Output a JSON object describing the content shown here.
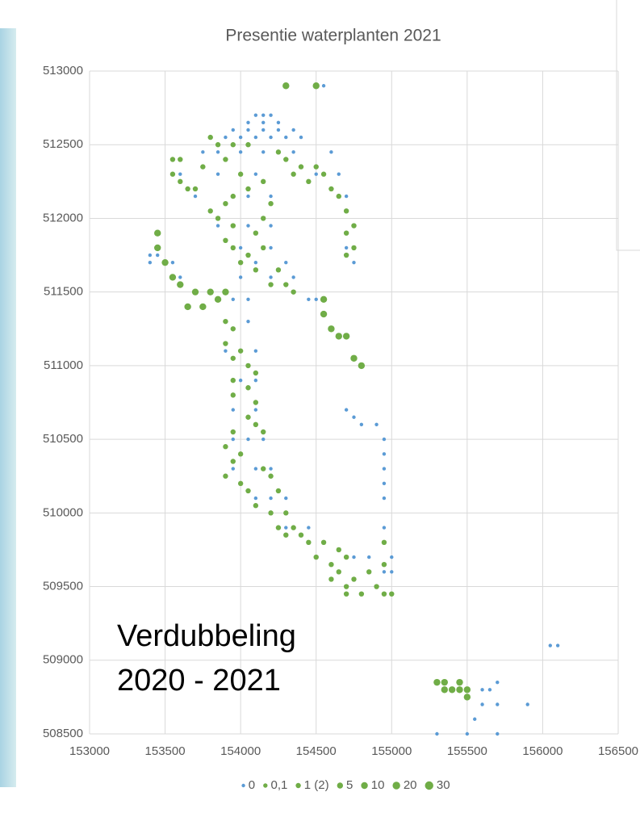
{
  "chart_data": {
    "type": "scatter",
    "title": "Presentie waterplanten 2021",
    "annotations": [
      "Verdubbeling",
      "2020 - 2021"
    ],
    "xlim": [
      153000,
      156500
    ],
    "xticks": [
      153000,
      153500,
      154000,
      154500,
      155000,
      155500,
      156000,
      156500
    ],
    "ylim": [
      508500,
      513000
    ],
    "yticks": [
      508500,
      509000,
      509500,
      510000,
      510500,
      511000,
      511500,
      512000,
      512500,
      513000
    ],
    "grid": true,
    "legend": "bottom",
    "series": [
      {
        "name": "0",
        "color": "#5b9bd5",
        "x": [
          154100,
          154150,
          154200,
          154050,
          154150,
          154250,
          153950,
          154050,
          154150,
          154250,
          154350,
          153900,
          154000,
          154100,
          154200,
          154300,
          154400,
          153750,
          153850,
          154000,
          154150,
          154350,
          154600,
          153600,
          153850,
          154100,
          154500,
          154650,
          153700,
          154050,
          154200,
          154700,
          153850,
          154050,
          154200,
          154000,
          154200,
          154700,
          153400,
          153500,
          153550,
          154100,
          154300,
          154750,
          153600,
          154000,
          154200,
          154350,
          153950,
          154050,
          154450,
          154500,
          153900,
          154050,
          153900,
          154000,
          154100,
          154000,
          154100,
          153950,
          154100,
          154700,
          153950,
          154050,
          154150,
          154950,
          153950,
          154100,
          154200,
          154950,
          154100,
          154200,
          154300,
          154950,
          154300,
          154450,
          154950,
          154750,
          154850,
          155000,
          154950,
          155000,
          154550,
          153400,
          153450,
          154750,
          154800,
          154900,
          154950,
          154950,
          155300,
          155500,
          155700,
          155550,
          155600,
          155700,
          155600,
          155650,
          155700,
          155900,
          156050,
          156100
        ],
        "y": [
          512700,
          512700,
          512700,
          512650,
          512650,
          512650,
          512600,
          512600,
          512600,
          512600,
          512600,
          512550,
          512550,
          512550,
          512550,
          512550,
          512550,
          512450,
          512450,
          512450,
          512450,
          512450,
          512450,
          512300,
          512300,
          512300,
          512300,
          512300,
          512150,
          512150,
          512150,
          512150,
          511950,
          511950,
          511950,
          511800,
          511800,
          511800,
          511700,
          511700,
          511700,
          511700,
          511700,
          511700,
          511600,
          511600,
          511600,
          511600,
          511450,
          511450,
          511450,
          511450,
          511300,
          511300,
          511100,
          511100,
          511100,
          510900,
          510900,
          510700,
          510700,
          510700,
          510500,
          510500,
          510500,
          510500,
          510300,
          510300,
          510300,
          510300,
          510100,
          510100,
          510100,
          510100,
          509900,
          509900,
          509900,
          509700,
          509700,
          509700,
          509600,
          509600,
          512900,
          511750,
          511750,
          510650,
          510600,
          510600,
          510400,
          510200,
          508500,
          508500,
          508500,
          508600,
          508700,
          508700,
          508800,
          508800,
          508850,
          508700,
          509100,
          509100
        ]
      },
      {
        "name": "0,1",
        "color": "#70ad47",
        "x": [],
        "y": []
      },
      {
        "name": "1 (2)",
        "color": "#70ad47",
        "x": [
          153550,
          153600,
          153550,
          153600,
          153650,
          153700,
          153750,
          153800,
          153850,
          153800,
          153850,
          153900,
          153950,
          153900,
          153950,
          154000,
          154050,
          154100,
          154150,
          154100,
          154150,
          154200,
          154250,
          154300,
          154350,
          154250,
          154300,
          154350,
          154400,
          154450,
          154500,
          154550,
          154600,
          154650,
          154700,
          154750,
          154700,
          154750,
          154700,
          153950,
          154050,
          153900,
          154000,
          154050,
          154150,
          154200,
          153950,
          153900,
          153950,
          153900,
          154000,
          153950,
          154050,
          154100,
          153950,
          154050,
          153950,
          154100,
          154050,
          154100,
          154150,
          153950,
          153900,
          153950,
          154000,
          153900,
          154000,
          154050,
          154150,
          154200,
          154250,
          154100,
          154200,
          154300,
          154350,
          154250,
          154300,
          154400,
          154450,
          154550,
          154500,
          154600,
          154650,
          154700,
          154600,
          154650,
          154700,
          154750,
          154700,
          154800,
          154850,
          154900,
          154950,
          155000,
          154950,
          154950
        ],
        "y": [
          512400,
          512400,
          512300,
          512250,
          512200,
          512200,
          512350,
          512550,
          512500,
          512050,
          512000,
          512100,
          511950,
          511850,
          511800,
          511700,
          511750,
          511650,
          511800,
          511900,
          512000,
          511550,
          511650,
          511550,
          511500,
          512450,
          512400,
          512300,
          512350,
          512250,
          512350,
          512300,
          512200,
          512150,
          512050,
          511950,
          511900,
          511800,
          511750,
          512500,
          512500,
          512400,
          512300,
          512200,
          512250,
          512100,
          512150,
          511300,
          511250,
          511150,
          511100,
          511050,
          511000,
          510950,
          510900,
          510850,
          510800,
          510750,
          510650,
          510600,
          510550,
          510550,
          510450,
          510350,
          510400,
          510250,
          510200,
          510150,
          510300,
          510250,
          510150,
          510050,
          510000,
          510000,
          509900,
          509900,
          509850,
          509850,
          509800,
          509800,
          509700,
          509650,
          509750,
          509700,
          509550,
          509600,
          509500,
          509550,
          509450,
          509450,
          509600,
          509500,
          509450,
          509450,
          509650,
          509800
        ]
      },
      {
        "name": "5",
        "color": "#70ad47",
        "x": [],
        "y": []
      },
      {
        "name": "10",
        "color": "#70ad47",
        "x": [
          154300,
          154500,
          153450,
          153450,
          153500,
          153550,
          153600,
          153700,
          153650,
          153750,
          153800,
          153850,
          153900,
          154550,
          154550,
          154600,
          154650,
          154700,
          154750,
          154800,
          155300,
          155350,
          155400,
          155450,
          155500,
          155500,
          155350,
          155450
        ],
        "y": [
          512900,
          512900,
          511900,
          511800,
          511700,
          511600,
          511550,
          511500,
          511400,
          511400,
          511500,
          511450,
          511500,
          511450,
          511350,
          511250,
          511200,
          511200,
          511050,
          511000,
          508850,
          508850,
          508800,
          508850,
          508800,
          508750,
          508800,
          508800
        ]
      },
      {
        "name": "20",
        "color": "#70ad47",
        "x": [],
        "y": []
      },
      {
        "name": "30",
        "color": "#70ad47",
        "x": [],
        "y": []
      }
    ]
  }
}
